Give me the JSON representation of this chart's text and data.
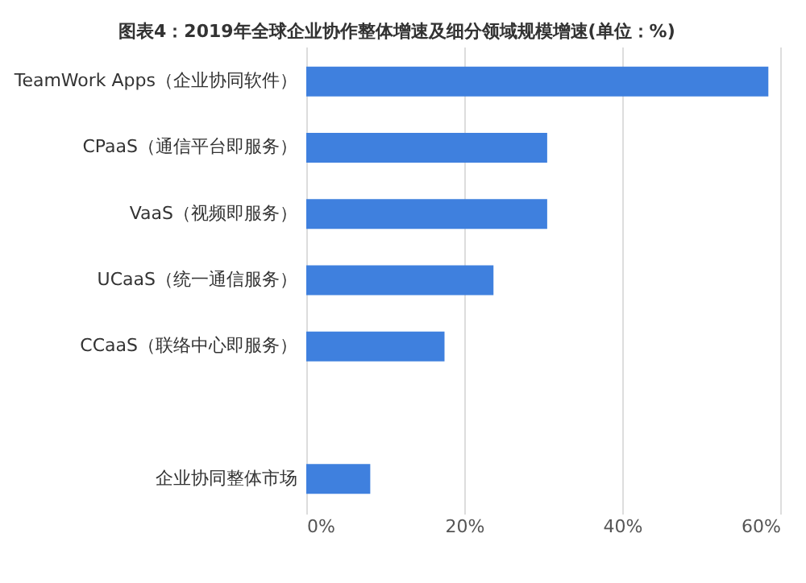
{
  "chart_data": {
    "type": "bar",
    "orientation": "horizontal",
    "title": "图表4：2019年全球企业协作整体增速及细分领域规模增速(单位：%)",
    "categories": [
      "TeamWork Apps（企业协同软件）",
      "CPaaS（通信平台即服务）",
      "VaaS（视频即服务）",
      "UCaaS（统一通信服务）",
      "CCaaS（联络中心即服务）",
      null,
      "企业协同整体市场"
    ],
    "values": [
      58.5,
      30.5,
      30.5,
      23.7,
      17.5,
      null,
      8.1
    ],
    "color": "#3f80de",
    "xlim": [
      0,
      60
    ],
    "xticks": [
      {
        "value": 0,
        "label": "0%"
      },
      {
        "value": 20,
        "label": "20%"
      },
      {
        "value": 40,
        "label": "40%"
      },
      {
        "value": 60,
        "label": "60%"
      }
    ],
    "grid": "x"
  }
}
